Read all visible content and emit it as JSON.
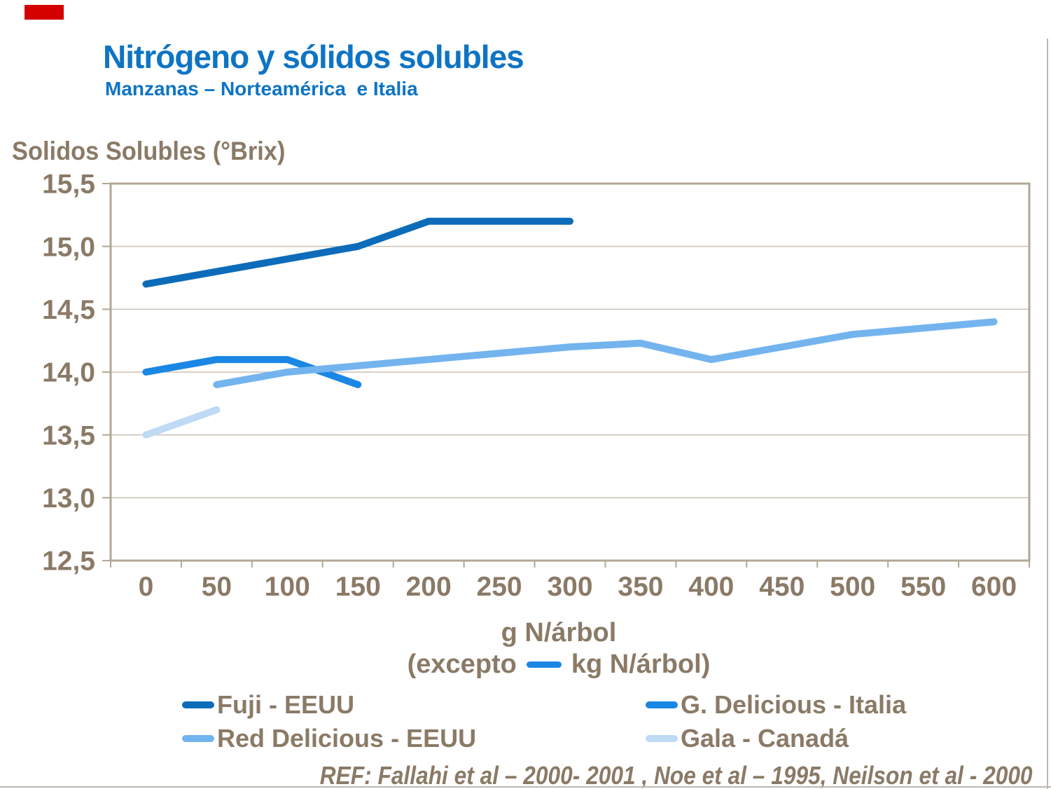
{
  "slide": {
    "title": "Nitrógeno y sólidos solubles",
    "subtitle": "Manzanas – Norteamérica  e Italia",
    "footer_ref": "REF: Fallahi et al – 2000- 2001 , Noe et al – 1995, Neilson et al - 2000",
    "accent_color": "#d40000",
    "title_color": "#0e74c4",
    "text_color": "#8a7a66"
  },
  "chart_data": {
    "type": "line",
    "title": "Nitrógeno y sólidos solubles",
    "y_axis_title": "Solidos Solubles (°Brix)",
    "x_axis_title": "g N/árbol",
    "x_axis_note_prefix": "(excepto",
    "x_axis_note_suffix": "kg N/árbol)",
    "ylim": [
      12.5,
      15.5
    ],
    "x_step": 50,
    "grid": "horizontal",
    "legend_position": "bottom-two-columns",
    "axis_color": "#b2a795",
    "grid_color": "#cac1b3",
    "label_color": "#8a7a66",
    "y_ticks": [
      {
        "value": 12.5,
        "label": "12,5"
      },
      {
        "value": 13.0,
        "label": "13,0"
      },
      {
        "value": 13.5,
        "label": "13,5"
      },
      {
        "value": 14.0,
        "label": "14,0"
      },
      {
        "value": 14.5,
        "label": "14,5"
      },
      {
        "value": 15.0,
        "label": "15,0"
      },
      {
        "value": 15.5,
        "label": "15,5"
      }
    ],
    "x_ticks": [
      {
        "value": 0,
        "label": "0"
      },
      {
        "value": 50,
        "label": "50"
      },
      {
        "value": 100,
        "label": "100"
      },
      {
        "value": 150,
        "label": "150"
      },
      {
        "value": 200,
        "label": "200"
      },
      {
        "value": 250,
        "label": "250"
      },
      {
        "value": 300,
        "label": "300"
      },
      {
        "value": 350,
        "label": "350"
      },
      {
        "value": 400,
        "label": "400"
      },
      {
        "value": 450,
        "label": "450"
      },
      {
        "value": 500,
        "label": "500"
      },
      {
        "value": 550,
        "label": "550"
      },
      {
        "value": 600,
        "label": "600"
      }
    ],
    "series": [
      {
        "name": "Fuji - EEUU",
        "color": "#0d6cba",
        "points": [
          [
            0,
            14.7
          ],
          [
            150,
            15.0
          ],
          [
            200,
            15.2
          ],
          [
            300,
            15.2
          ]
        ]
      },
      {
        "name": "G. Delicious - Italia",
        "color": "#1a87e4",
        "points": [
          [
            0,
            14.0
          ],
          [
            50,
            14.1
          ],
          [
            100,
            14.1
          ],
          [
            150,
            13.9
          ]
        ]
      },
      {
        "name": "Red Delicious - EEUU",
        "color": "#73b4ef",
        "points": [
          [
            50,
            13.9
          ],
          [
            100,
            14.0
          ],
          [
            150,
            14.05
          ],
          [
            200,
            14.1
          ],
          [
            250,
            14.15
          ],
          [
            300,
            14.2
          ],
          [
            350,
            14.23
          ],
          [
            400,
            14.1
          ],
          [
            450,
            14.2
          ],
          [
            500,
            14.3
          ],
          [
            550,
            14.35
          ],
          [
            600,
            14.4
          ]
        ]
      },
      {
        "name": "Gala - Canadá",
        "color": "#bedaf5",
        "points": [
          [
            0,
            13.5
          ],
          [
            50,
            13.7
          ]
        ]
      }
    ]
  }
}
